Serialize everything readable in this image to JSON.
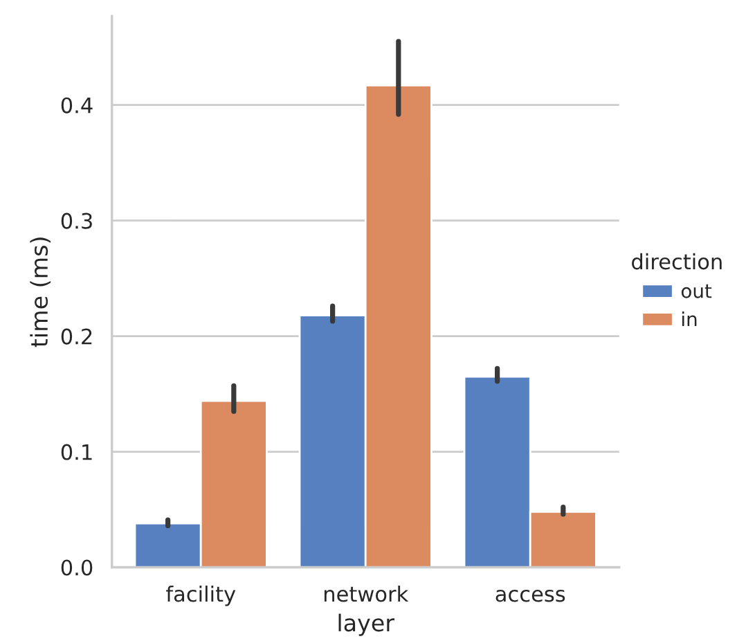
{
  "chart_data": {
    "type": "bar",
    "xlabel": "layer",
    "ylabel": "time (ms)",
    "legend_title": "direction",
    "categories": [
      "facility",
      "network",
      "access"
    ],
    "series": [
      {
        "name": "out",
        "color": "#5680c0",
        "values": [
          0.038,
          0.218,
          0.165
        ],
        "errors": [
          [
            0.036,
            0.041
          ],
          [
            0.213,
            0.226
          ],
          [
            0.161,
            0.172
          ]
        ]
      },
      {
        "name": "in",
        "color": "#dc8a60",
        "values": [
          0.144,
          0.417,
          0.048
        ],
        "errors": [
          [
            0.135,
            0.157
          ],
          [
            0.392,
            0.455
          ],
          [
            0.046,
            0.052
          ]
        ]
      }
    ],
    "ylim": [
      0,
      0.477
    ],
    "yticks": [
      {
        "value": 0,
        "label": "0.0"
      },
      0.1,
      0.2,
      0.3,
      0.4
    ],
    "grid": "y",
    "legend": "right"
  }
}
